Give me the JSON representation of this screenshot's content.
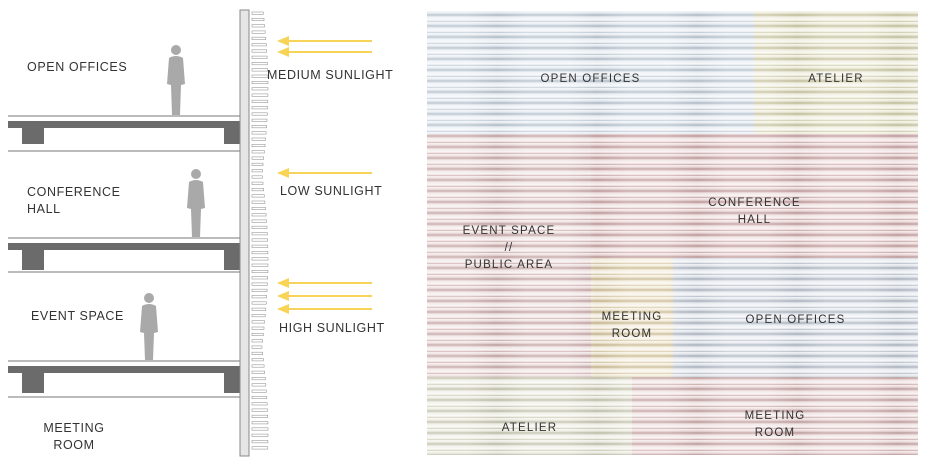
{
  "section": {
    "floors": [
      {
        "label": "OPEN OFFICES"
      },
      {
        "label": "CONFERENCE\nHALL"
      },
      {
        "label": "EVENT SPACE"
      },
      {
        "label": "MEETING\nROOM"
      }
    ],
    "sunlight": [
      {
        "label": "MEDIUM SUNLIGHT",
        "arrows": 2
      },
      {
        "label": "LOW SUNLIGHT",
        "arrows": 1
      },
      {
        "label": "HIGH SUNLIGHT",
        "arrows": 3
      }
    ]
  },
  "facade": {
    "zones": [
      {
        "label": "OPEN OFFICES",
        "color": "#c9d6e3"
      },
      {
        "label": "ATELIER",
        "color": "#dcd8b0"
      },
      {
        "label": "EVENT SPACE\n//\nPUBLIC AREA",
        "color": "#d9b5b5"
      },
      {
        "label": "CONFERENCE\nHALL",
        "color": "#d8adae"
      },
      {
        "label": "MEETING\nROOM",
        "color": "#e2cfa3"
      },
      {
        "label": "OPEN OFFICES",
        "color": "#c3ccd9"
      },
      {
        "label": "ATELIER",
        "color": "#d8d7bf"
      },
      {
        "label": "MEETING\nROOM",
        "color": "#d9b2b2"
      }
    ]
  },
  "colors": {
    "sun_arrow": "#f7d358",
    "slab": "#6b6b6b",
    "person": "#a9a9a9"
  }
}
